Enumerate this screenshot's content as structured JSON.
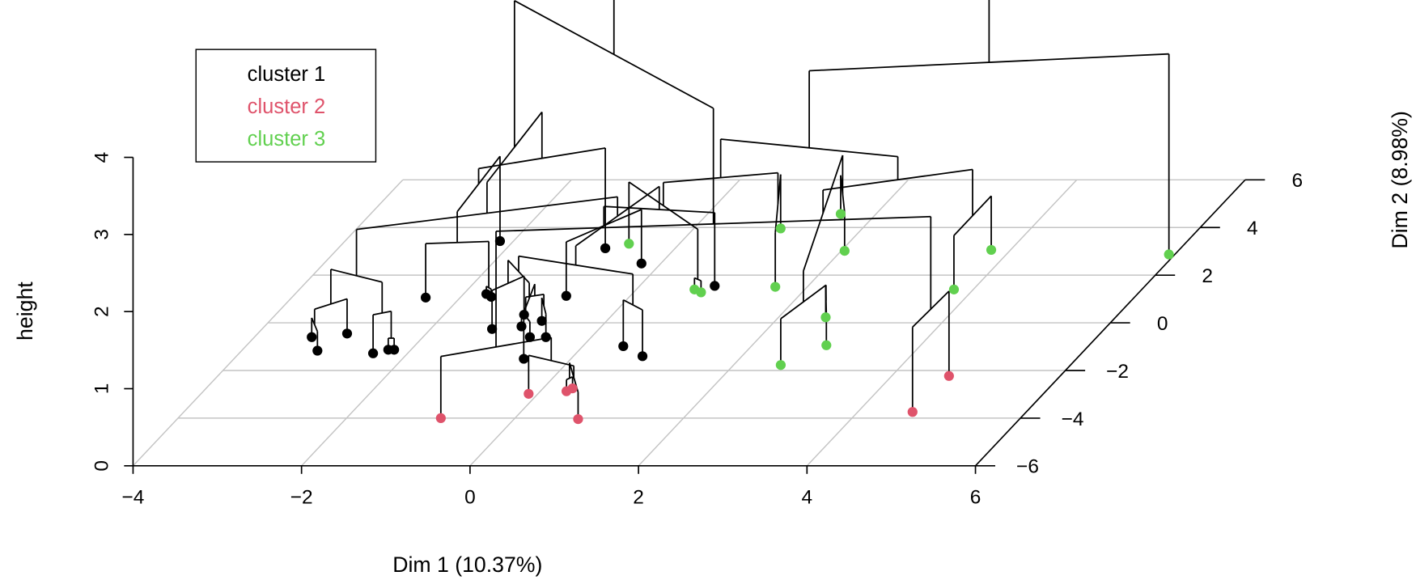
{
  "chart_data": {
    "type": "3d-dendrogram-scatter",
    "xlabel": "Dim 1 (10.37%)",
    "ylabel": "Dim 2 (8.98%)",
    "zlabel": "height",
    "xlim": [
      -4,
      6
    ],
    "ylim": [
      -6,
      6
    ],
    "zlim": [
      0,
      4
    ],
    "x_ticks": [
      "-4",
      "-2",
      "0",
      "2",
      "4",
      "6"
    ],
    "y_ticks": [
      "-6",
      "-4",
      "-2",
      "0",
      "2",
      "4",
      "6"
    ],
    "z_ticks": [
      "0",
      "1",
      "2",
      "3",
      "4"
    ],
    "grid": true,
    "legend": {
      "placement": "top-left",
      "entries": [
        {
          "label": "cluster 1",
          "color": "#000000"
        },
        {
          "label": "cluster 2",
          "color": "#DF536B"
        },
        {
          "label": "cluster 3",
          "color": "#61D04F"
        }
      ]
    },
    "leaves": [
      {
        "dim1": -3.32,
        "dim2": -0.6,
        "cluster": 1
      },
      {
        "dim1": -3.1,
        "dim2": -1.17,
        "cluster": 1
      },
      {
        "dim1": -2.94,
        "dim2": -0.45,
        "cluster": 1
      },
      {
        "dim1": -2.41,
        "dim2": -1.28,
        "cluster": 1
      },
      {
        "dim1": -2.27,
        "dim2": -1.13,
        "cluster": 1
      },
      {
        "dim1": -2.2,
        "dim2": -1.13,
        "cluster": 1
      },
      {
        "dim1": -2.41,
        "dim2": 1.06,
        "cluster": 1
      },
      {
        "dim1": -1.73,
        "dim2": 1.21,
        "cluster": 1
      },
      {
        "dim1": -1.64,
        "dim2": 1.09,
        "cluster": 1
      },
      {
        "dim1": -2.16,
        "dim2": 3.43,
        "cluster": 1
      },
      {
        "dim1": -1.27,
        "dim2": -0.26,
        "cluster": 1
      },
      {
        "dim1": -1.05,
        "dim2": 0.34,
        "cluster": 1
      },
      {
        "dim1": -0.95,
        "dim2": -0.15,
        "cluster": 1
      },
      {
        "dim1": -0.73,
        "dim2": -0.6,
        "cluster": 1
      },
      {
        "dim1": -0.77,
        "dim2": 0.08,
        "cluster": 1
      },
      {
        "dim1": -0.54,
        "dim2": -0.6,
        "cluster": 1
      },
      {
        "dim1": -0.56,
        "dim2": -1.51,
        "cluster": 1
      },
      {
        "dim1": -0.76,
        "dim2": 1.13,
        "cluster": 1
      },
      {
        "dim1": -0.83,
        "dim2": 3.13,
        "cluster": 1
      },
      {
        "dim1": 0.48,
        "dim2": -0.98,
        "cluster": 1
      },
      {
        "dim1": -0.23,
        "dim2": 2.49,
        "cluster": 1
      },
      {
        "dim1": 0.82,
        "dim2": -1.4,
        "cluster": 1
      },
      {
        "dim1": 0.89,
        "dim2": 1.55,
        "cluster": 1
      },
      {
        "dim1": -0.88,
        "dim2": -4.0,
        "cluster": 2
      },
      {
        "dim1": -0.11,
        "dim2": -2.98,
        "cluster": 2
      },
      {
        "dim1": 0.31,
        "dim2": -2.87,
        "cluster": 2
      },
      {
        "dim1": 0.35,
        "dim2": -2.75,
        "cluster": 2
      },
      {
        "dim1": 0.76,
        "dim2": -4.04,
        "cluster": 2
      },
      {
        "dim1": 4.65,
        "dim2": -3.74,
        "cluster": 2
      },
      {
        "dim1": 4.68,
        "dim2": -2.23,
        "cluster": 2
      },
      {
        "dim1": -0.6,
        "dim2": 3.32,
        "cluster": 3
      },
      {
        "dim1": 0.69,
        "dim2": 1.4,
        "cluster": 3
      },
      {
        "dim1": 0.8,
        "dim2": 1.28,
        "cluster": 3
      },
      {
        "dim1": 1.03,
        "dim2": 3.96,
        "cluster": 3
      },
      {
        "dim1": 1.62,
        "dim2": 1.51,
        "cluster": 3
      },
      {
        "dim1": 1.58,
        "dim2": 4.57,
        "cluster": 3
      },
      {
        "dim1": 2.04,
        "dim2": 3.02,
        "cluster": 3
      },
      {
        "dim1": 2.56,
        "dim2": 0.23,
        "cluster": 3
      },
      {
        "dim1": 2.88,
        "dim2": -0.94,
        "cluster": 3
      },
      {
        "dim1": 2.56,
        "dim2": -1.77,
        "cluster": 3
      },
      {
        "dim1": 3.77,
        "dim2": 1.4,
        "cluster": 3
      },
      {
        "dim1": 3.77,
        "dim2": 3.06,
        "cluster": 3
      },
      {
        "dim1": 5.93,
        "dim2": 2.87,
        "cluster": 3
      }
    ],
    "merges": [
      [
        -5,
        -6,
        0.15
      ],
      [
        -1,
        -2,
        0.25
      ],
      [
        -8,
        -9,
        0.1
      ],
      [
        -13,
        -14,
        0.2
      ],
      [
        -15,
        -16,
        0.3
      ],
      [
        2,
        -3,
        0.45
      ],
      [
        1,
        -4,
        0.5
      ],
      [
        4,
        5,
        0.45
      ],
      [
        8,
        -17,
        0.6
      ],
      [
        -12,
        -11,
        0.5
      ],
      [
        10,
        9,
        0.8
      ],
      [
        -20,
        -22,
        0.6
      ],
      [
        -18,
        -21,
        0.7
      ],
      [
        6,
        7,
        0.9
      ],
      [
        3,
        -7,
        0.7
      ],
      [
        13,
        -23,
        0.95
      ],
      [
        11,
        12,
        1.0
      ],
      [
        15,
        -10,
        1.1
      ],
      [
        18,
        -19,
        1.3
      ],
      [
        17,
        16,
        1.25
      ],
      [
        14,
        20,
        1.5
      ],
      [
        21,
        19,
        1.9
      ],
      [
        -26,
        -27,
        0.15
      ],
      [
        23,
        -28,
        0.35
      ],
      [
        -25,
        24,
        0.5
      ],
      [
        25,
        -24,
        0.8
      ],
      [
        -29,
        -30,
        1.1
      ],
      [
        26,
        27,
        2.3
      ],
      [
        -32,
        -33,
        0.15
      ],
      [
        -38,
        -39,
        0.4
      ],
      [
        30,
        -40,
        0.6
      ],
      [
        -34,
        -35,
        0.7
      ],
      [
        -36,
        -37,
        0.5
      ],
      [
        -41,
        -42,
        0.7
      ],
      [
        29,
        -31,
        0.8
      ],
      [
        31,
        33,
        1.0
      ],
      [
        32,
        35,
        1.1
      ],
      [
        36,
        34,
        1.3
      ],
      [
        37,
        38,
        1.6
      ],
      [
        39,
        -43,
        2.6
      ],
      [
        22,
        28,
        3.8
      ],
      [
        41,
        40,
        5.9
      ]
    ]
  }
}
